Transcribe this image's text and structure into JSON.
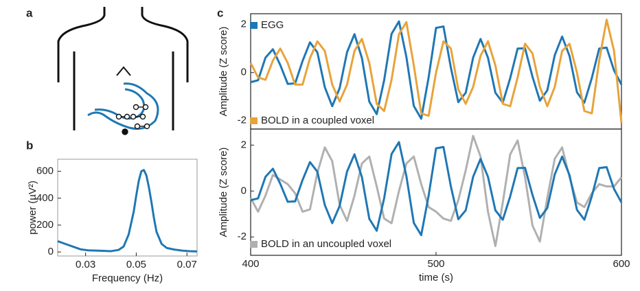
{
  "diagram": {
    "panel": "a"
  },
  "chart_data": [
    {
      "type": "line",
      "panel": "b",
      "xlabel": "Frequency (Hz)",
      "ylabel": "power (µV²)",
      "x": [
        0.019,
        0.022,
        0.025,
        0.028,
        0.031,
        0.034,
        0.037,
        0.04,
        0.043,
        0.045,
        0.047,
        0.049,
        0.05,
        0.051,
        0.052,
        0.053,
        0.054,
        0.055,
        0.056,
        0.057,
        0.058,
        0.06,
        0.062,
        0.065,
        0.068,
        0.071,
        0.074
      ],
      "series": [
        {
          "color": "#1f77b4",
          "values": [
            80,
            60,
            40,
            20,
            12,
            10,
            8,
            6,
            15,
            40,
            130,
            300,
            420,
            530,
            600,
            610,
            570,
            480,
            370,
            250,
            150,
            60,
            30,
            18,
            10,
            6,
            4
          ]
        }
      ],
      "xlim": [
        0.019,
        0.074
      ],
      "xticks": [
        0.03,
        0.05,
        0.07
      ],
      "ylim": [
        -30,
        690
      ],
      "yticks": [
        0,
        200,
        400,
        600
      ]
    },
    {
      "type": "line",
      "panel": "c",
      "ylabel": "Amplitude (Z score)",
      "x": [
        400,
        404,
        408,
        412,
        416,
        420,
        424,
        428,
        432,
        436,
        440,
        444,
        448,
        452,
        456,
        460,
        464,
        468,
        472,
        476,
        480,
        484,
        488,
        492,
        496,
        500,
        504,
        508,
        512,
        516,
        520,
        524,
        528,
        532,
        536,
        540,
        544,
        548,
        552,
        556,
        560,
        564,
        568,
        572,
        576,
        580,
        584,
        588,
        592,
        596,
        600
      ],
      "series": [
        {
          "name": "EGG",
          "color": "#1f77b4",
          "values": [
            -0.4,
            -0.32,
            0.62,
            0.97,
            0.31,
            -0.47,
            -0.45,
            0.48,
            1.26,
            0.84,
            -0.61,
            -1.4,
            -0.65,
            0.85,
            1.6,
            0.61,
            -1.21,
            -1.73,
            -0.32,
            1.61,
            2.13,
            0.65,
            -1.39,
            -1.92,
            -0.2,
            1.86,
            1.92,
            0.2,
            -1.23,
            -0.84,
            0.62,
            1.4,
            0.62,
            -0.84,
            -1.25,
            -0.23,
            1.0,
            1.01,
            -0.17,
            -1.17,
            -0.74,
            0.72,
            1.5,
            0.69,
            -0.82,
            -1.25,
            -0.23,
            1.0,
            1.04,
            0.09,
            -0.5
          ]
        },
        {
          "name": "BOLD in a coupled voxel",
          "color": "#e8a33a",
          "values": [
            0.4,
            -0.2,
            -0.3,
            0.5,
            1.0,
            0.4,
            -0.5,
            -0.5,
            0.6,
            1.3,
            0.9,
            -0.5,
            -1.2,
            -0.5,
            0.9,
            1.4,
            0.4,
            -1.3,
            -1.6,
            -0.3,
            1.6,
            2.1,
            0.3,
            -1.7,
            -1.8,
            0.0,
            1.3,
            1.0,
            -0.7,
            -1.3,
            -0.6,
            0.7,
            1.3,
            0.3,
            -1.3,
            -1.4,
            -0.2,
            1.2,
            0.8,
            -0.6,
            -1.4,
            -0.6,
            0.9,
            1.2,
            0.0,
            -1.6,
            -1.7,
            0.5,
            2.2,
            0.9,
            -2.1
          ]
        }
      ],
      "xlim": [
        400,
        600
      ],
      "ylim": [
        -2.35,
        2.45
      ],
      "yticks": [
        -2,
        0,
        2
      ]
    },
    {
      "type": "line",
      "ylabel": "Amplitude (Z score)",
      "xlabel": "time (s)",
      "x": [
        400,
        404,
        408,
        412,
        416,
        420,
        424,
        428,
        432,
        436,
        440,
        444,
        448,
        452,
        456,
        460,
        464,
        468,
        472,
        476,
        480,
        484,
        488,
        492,
        496,
        500,
        504,
        508,
        512,
        516,
        520,
        524,
        528,
        532,
        536,
        540,
        544,
        548,
        552,
        556,
        560,
        564,
        568,
        572,
        576,
        580,
        584,
        588,
        592,
        596,
        600
      ],
      "series": [
        {
          "color": "#b0b0b0",
          "name": "BOLD in an uncoupled voxel",
          "values": [
            -0.3,
            -0.9,
            -0.2,
            0.7,
            0.5,
            0.3,
            -0.1,
            -0.9,
            -0.8,
            0.8,
            1.9,
            1.3,
            -0.6,
            -1.3,
            -0.2,
            1.2,
            1.5,
            0.2,
            -1.2,
            -1.4,
            0.0,
            1.2,
            1.5,
            0.3,
            -0.7,
            -0.9,
            -1.2,
            -1.3,
            -0.4,
            0.9,
            2.4,
            1.5,
            -0.9,
            -2.4,
            -0.5,
            1.6,
            2.2,
            0.6,
            -1.5,
            -2.2,
            -0.3,
            1.4,
            1.9,
            0.6,
            -0.5,
            -0.7,
            -0.1,
            0.3,
            0.2,
            0.2,
            0.6
          ]
        },
        {
          "color": "#1f77b4",
          "values": [
            -0.4,
            -0.32,
            0.62,
            0.97,
            0.31,
            -0.47,
            -0.45,
            0.48,
            1.26,
            0.84,
            -0.61,
            -1.4,
            -0.65,
            0.85,
            1.6,
            0.61,
            -1.21,
            -1.73,
            -0.32,
            1.61,
            2.13,
            0.65,
            -1.39,
            -1.92,
            -0.2,
            1.86,
            1.92,
            0.2,
            -1.23,
            -0.84,
            0.62,
            1.4,
            0.62,
            -0.84,
            -1.25,
            -0.23,
            1.0,
            1.01,
            -0.17,
            -1.17,
            -0.74,
            0.72,
            1.5,
            0.69,
            -0.82,
            -1.25,
            -0.23,
            1.0,
            1.04,
            0.09,
            -0.5
          ]
        }
      ],
      "xlim": [
        400,
        600
      ],
      "xticks": [
        400,
        500,
        600
      ],
      "ylim": [
        -2.8,
        2.7
      ],
      "yticks": [
        -2,
        0,
        2
      ]
    }
  ]
}
